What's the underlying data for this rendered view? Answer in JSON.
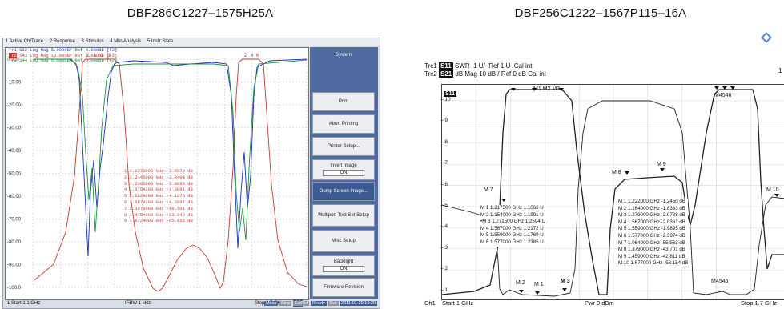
{
  "titles": {
    "left": "DBF286C1227–1575H25A",
    "right": "DBF256C1222–1567P115–16A"
  },
  "left": {
    "menubar": [
      "1 Active Ch/Trace",
      "2 Response",
      "3 Stimulus",
      "4 Mkr/Analysis",
      "5 Instr State"
    ],
    "traces": [
      {
        "label": "Tr1 S22 Log Mag 5.000dB/ Ref 0.000dB [F2]",
        "color": "#1b2fbf"
      },
      {
        "label": "S42 Log Mag 10.00dB/ Ref 0.000dB [F2]",
        "color": "#c23b2f",
        "tag": "Tr2"
      },
      {
        "label": "Tr3 S44 Log Mag 5.000dB/ Ref 0.000dB [F2]",
        "color": "#1f8f3a"
      }
    ],
    "yticks": [
      "0.000",
      "-10.00",
      "-20.00",
      "-30.00",
      "-40.00",
      "-50.00",
      "-60.00",
      "-70.00",
      "-80.00",
      "-90.00",
      "-100.0"
    ],
    "markers": [
      {
        "n": "1",
        "f": "1.2270000 GHz",
        "v": "-2.5570 dB"
      },
      {
        "n": "2",
        "f": "1.2145000 GHz",
        "v": "-2.8404 dB"
      },
      {
        "n": "3",
        "f": "1.2395000 GHz",
        "v": "-2.8085 dB"
      },
      {
        "n": "4",
        "f": "1.5754200 GHz",
        "v": "-1.8981 dB"
      },
      {
        "n": "5",
        "f": "1.5629200 GHz",
        "v": "-4.1275 dB"
      },
      {
        "n": "6",
        "f": "1.5879200 GHz",
        "v": "-4.2897 dB"
      },
      {
        "n": "7",
        "f": "1.3270000 GHz",
        "v": "-90.501 dB"
      },
      {
        "n": "8",
        "f": "1.4754000 GHz",
        "v": "-83.643 dB"
      },
      {
        "n": "9",
        "f": "1.6724000 GHz",
        "v": "-85.012 dB"
      }
    ],
    "footer": {
      "start": "1 Start 1.1 GHz",
      "ifbw": "IFBW 1 kHz",
      "stop": "Stop 1.7 GHz",
      "c2": "C2"
    },
    "statusbar": {
      "meas": "Meas",
      "stop": "Stop",
      "extref": "ExtRef",
      "ready": "Ready",
      "svc": "Svc",
      "datetime": "2011-01-29 13:20"
    },
    "softkeys": [
      {
        "label": "System",
        "style": "header"
      },
      {
        "label": "Print"
      },
      {
        "label": "Abort Printing"
      },
      {
        "label": "Printer Setup..."
      },
      {
        "label": "Invert Image",
        "sub": "ON"
      },
      {
        "label": "Dump Screen Image...",
        "style": "dark"
      },
      {
        "label": "Multiport Test Set Setup"
      },
      {
        "label": "Misc Setup"
      },
      {
        "label": "Backlight",
        "sub": "ON"
      },
      {
        "label": "Firmware Revision"
      }
    ]
  },
  "right": {
    "header": {
      "trc1": "Trc1",
      "s11": "S11",
      "swr": "SWR",
      "scale1": "1 U/",
      "ref1": "Ref 1 U",
      "cal1": "Cal int",
      "trc2": "Trc2",
      "s21": "S21",
      "dbmag": "dB Mag",
      "scale2": "10 dB /",
      "ref2": "Ref 0 dB",
      "cal2": "Cal int",
      "right1": "1"
    },
    "s11tag": "S11",
    "yticks": [
      "10",
      "9",
      "8",
      "7",
      "6",
      "5",
      "4",
      "3",
      "2",
      "1"
    ],
    "markers_left": [
      {
        "n": "M 1",
        "f": "1.217500 GHz",
        "v": "1.1066 U"
      },
      {
        "n": "M 2",
        "f": "1.154000 GHz",
        "v": "1.1991 U"
      },
      {
        "n": "•M 3",
        "f": "1.271500 GHz",
        "v": "1.2594 U"
      },
      {
        "n": "M 4",
        "f": "1.567000 GHz",
        "v": "1.2172 U"
      },
      {
        "n": "M 5",
        "f": "1.559000 GHz",
        "v": "1.1769 U"
      },
      {
        "n": "M 6",
        "f": "1.577000 GHz",
        "v": "1.2385 U"
      }
    ],
    "markers_right": [
      {
        "n": "M 1",
        "f": "1.222000 GHz",
        "v": "-1.2450 dB"
      },
      {
        "n": "M 2",
        "f": "1.164000 GHz",
        "v": "-1.8333 dB"
      },
      {
        "n": "M 3",
        "f": "1.279000 GHz",
        "v": "-2.0788 dB"
      },
      {
        "n": "M 4",
        "f": "1.567000 GHz",
        "v": "-2.0361 dB"
      },
      {
        "n": "M 5",
        "f": "1.559000 GHz",
        "v": "-1.9895 dB"
      },
      {
        "n": "M 6",
        "f": "1.577000 GHz",
        "v": "-2.3374 dB"
      },
      {
        "n": "M 7",
        "f": "1.064000 GHz",
        "v": "-55.563 dB"
      },
      {
        "n": "M 8",
        "f": "1.379000 GHz",
        "v": "-43.701 dB"
      },
      {
        "n": "M 9",
        "f": "1.459000 GHz",
        "v": "-42.811 dB"
      },
      {
        "n": "M 10",
        "f": "1.677000 GHz",
        "v": "-58.154 dB"
      }
    ],
    "plot_labels": {
      "m7": "M 7",
      "m8": "M 8",
      "m9": "M 9",
      "m10": "M 10",
      "m2": "M 2",
      "m1": "M 1",
      "m3": "M 3",
      "m123": "M1 M2 M3",
      "m456": "M4546",
      "m456b": "M4546"
    },
    "footer": {
      "ch1": "Ch1",
      "start": "Start 1 GHz",
      "pwr": "Pwr 0 dBm",
      "stop": "Stop 1.7 GHz"
    }
  },
  "colors": {
    "s22": "#1b2fbf",
    "s42": "#c23b2f",
    "s44": "#1f8f3a",
    "softkey_panel": "#4f6aa0"
  }
}
